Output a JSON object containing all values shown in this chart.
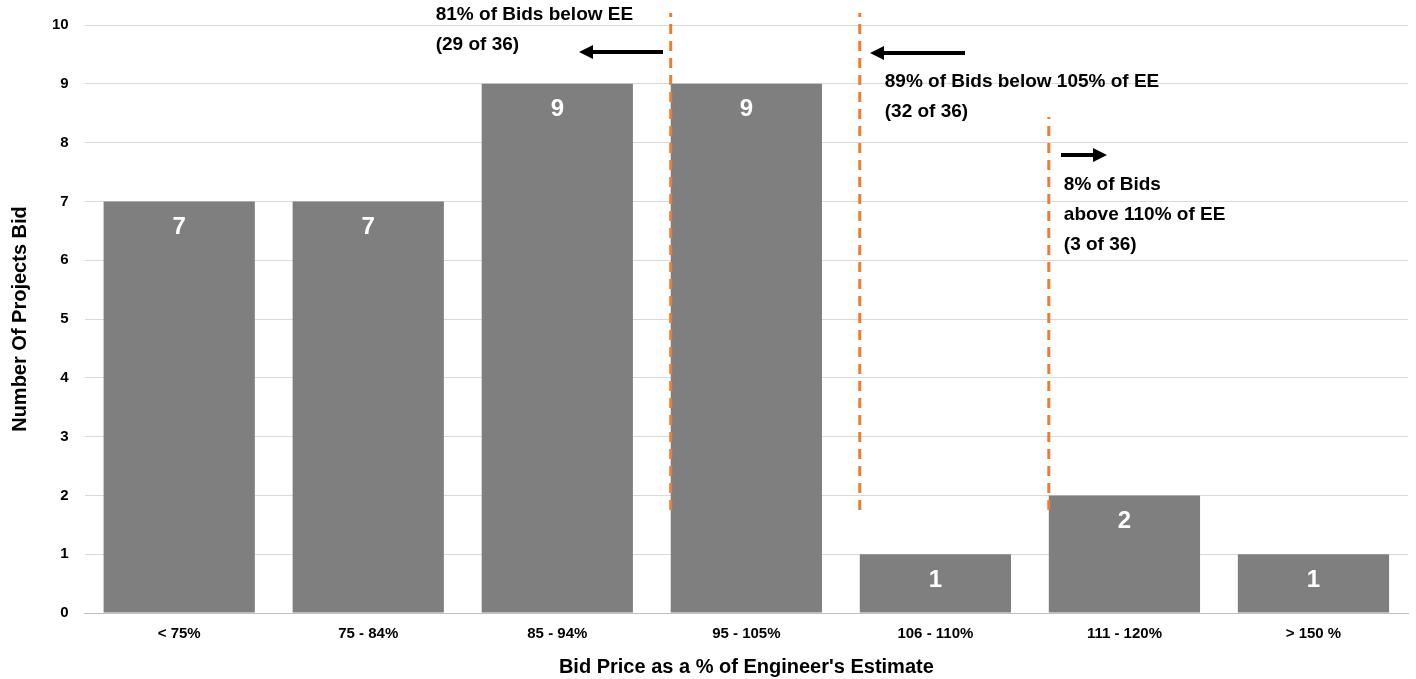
{
  "chart_data": {
    "type": "bar",
    "categories": [
      "< 75%",
      "75 - 84%",
      "85 - 94%",
      "95 - 105%",
      "106 - 110%",
      "111 - 120%",
      "> 150 %"
    ],
    "values": [
      7,
      7,
      9,
      9,
      1,
      2,
      1
    ],
    "color": "#7f7f7f",
    "xlabel": "Bid Price as a % of Engineer's Estimate",
    "ylabel": "Number Of Projects Bid",
    "ylim": [
      0,
      10
    ],
    "yticks": [
      0,
      1,
      2,
      3,
      4,
      5,
      6,
      7,
      8,
      9,
      10
    ],
    "grid": "y",
    "data_labels": true,
    "ref_lines": [
      {
        "axis": "x",
        "value": "95 - 105%",
        "label": "81% of Bids below EE\n(29 of 36)",
        "color": "#ed7d31",
        "line_style": "dashed"
      },
      {
        "axis": "x",
        "value": "106 - 110%",
        "label": "89% of Bids below 105% of EE\n(32 of 36)",
        "color": "#ed7d31",
        "line_style": "dashed"
      },
      {
        "axis": "x",
        "value": "111 - 120%",
        "label": "8% of Bids\nabove 110% of EE\n(3 of 36)",
        "color": "#ed7d31",
        "line_style": "dashed"
      }
    ]
  }
}
